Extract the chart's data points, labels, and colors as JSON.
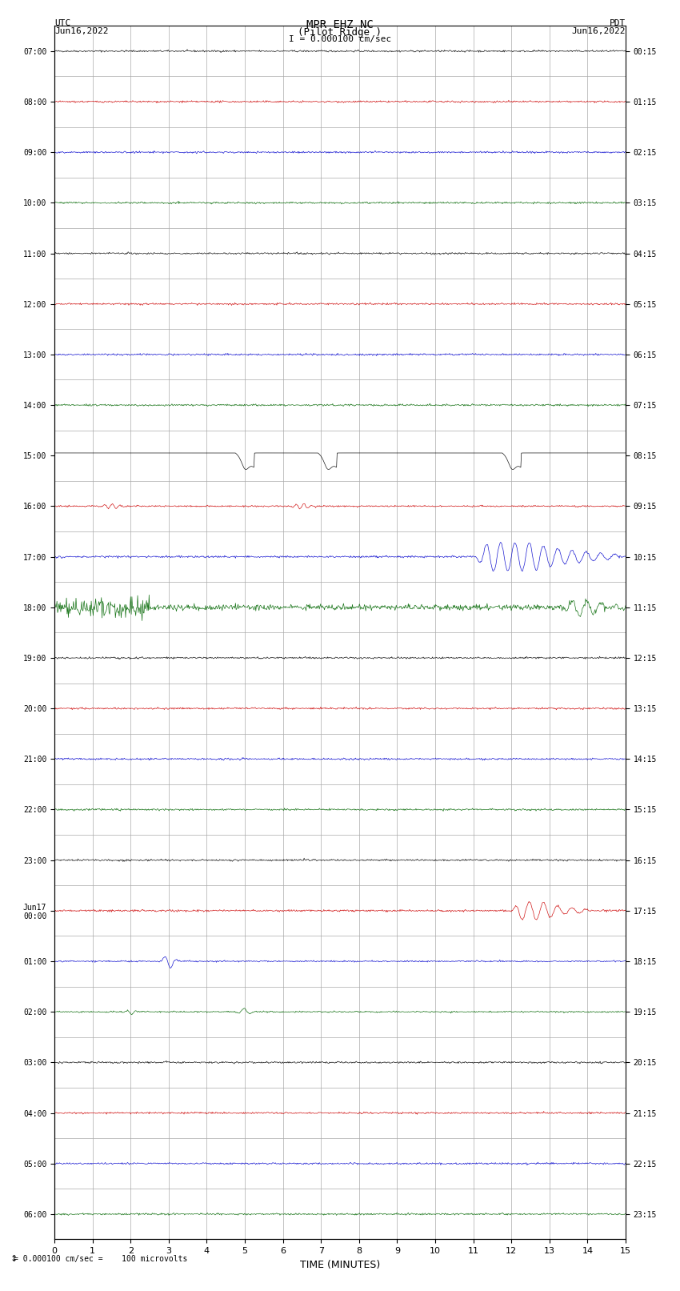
{
  "title_line1": "MPR EHZ NC",
  "title_line2": "(Pilot Ridge )",
  "title_line3": "I = 0.000100 cm/sec",
  "left_label_line1": "UTC",
  "left_label_line2": "Jun16,2022",
  "right_label_line1": "PDT",
  "right_label_line2": "Jun16,2022",
  "bottom_label": "TIME (MINUTES)",
  "bottom_note": "= 0.000100 cm/sec =    100 microvolts",
  "utc_times": [
    "07:00",
    "08:00",
    "09:00",
    "10:00",
    "11:00",
    "12:00",
    "13:00",
    "14:00",
    "15:00",
    "16:00",
    "17:00",
    "18:00",
    "19:00",
    "20:00",
    "21:00",
    "22:00",
    "23:00",
    "Jun17\n00:00",
    "01:00",
    "02:00",
    "03:00",
    "04:00",
    "05:00",
    "06:00"
  ],
  "pdt_times": [
    "00:15",
    "01:15",
    "02:15",
    "03:15",
    "04:15",
    "05:15",
    "06:15",
    "07:15",
    "08:15",
    "09:15",
    "10:15",
    "11:15",
    "12:15",
    "13:15",
    "14:15",
    "15:15",
    "16:15",
    "17:15",
    "18:15",
    "19:15",
    "20:15",
    "21:15",
    "22:15",
    "23:15"
  ],
  "n_rows": 24,
  "n_minutes": 15,
  "bg_color": "#ffffff",
  "grid_color": "#aaaaaa",
  "line_color_black": "#000000",
  "line_color_red": "#cc0000",
  "line_color_blue": "#0000cc",
  "line_color_green": "#006600"
}
